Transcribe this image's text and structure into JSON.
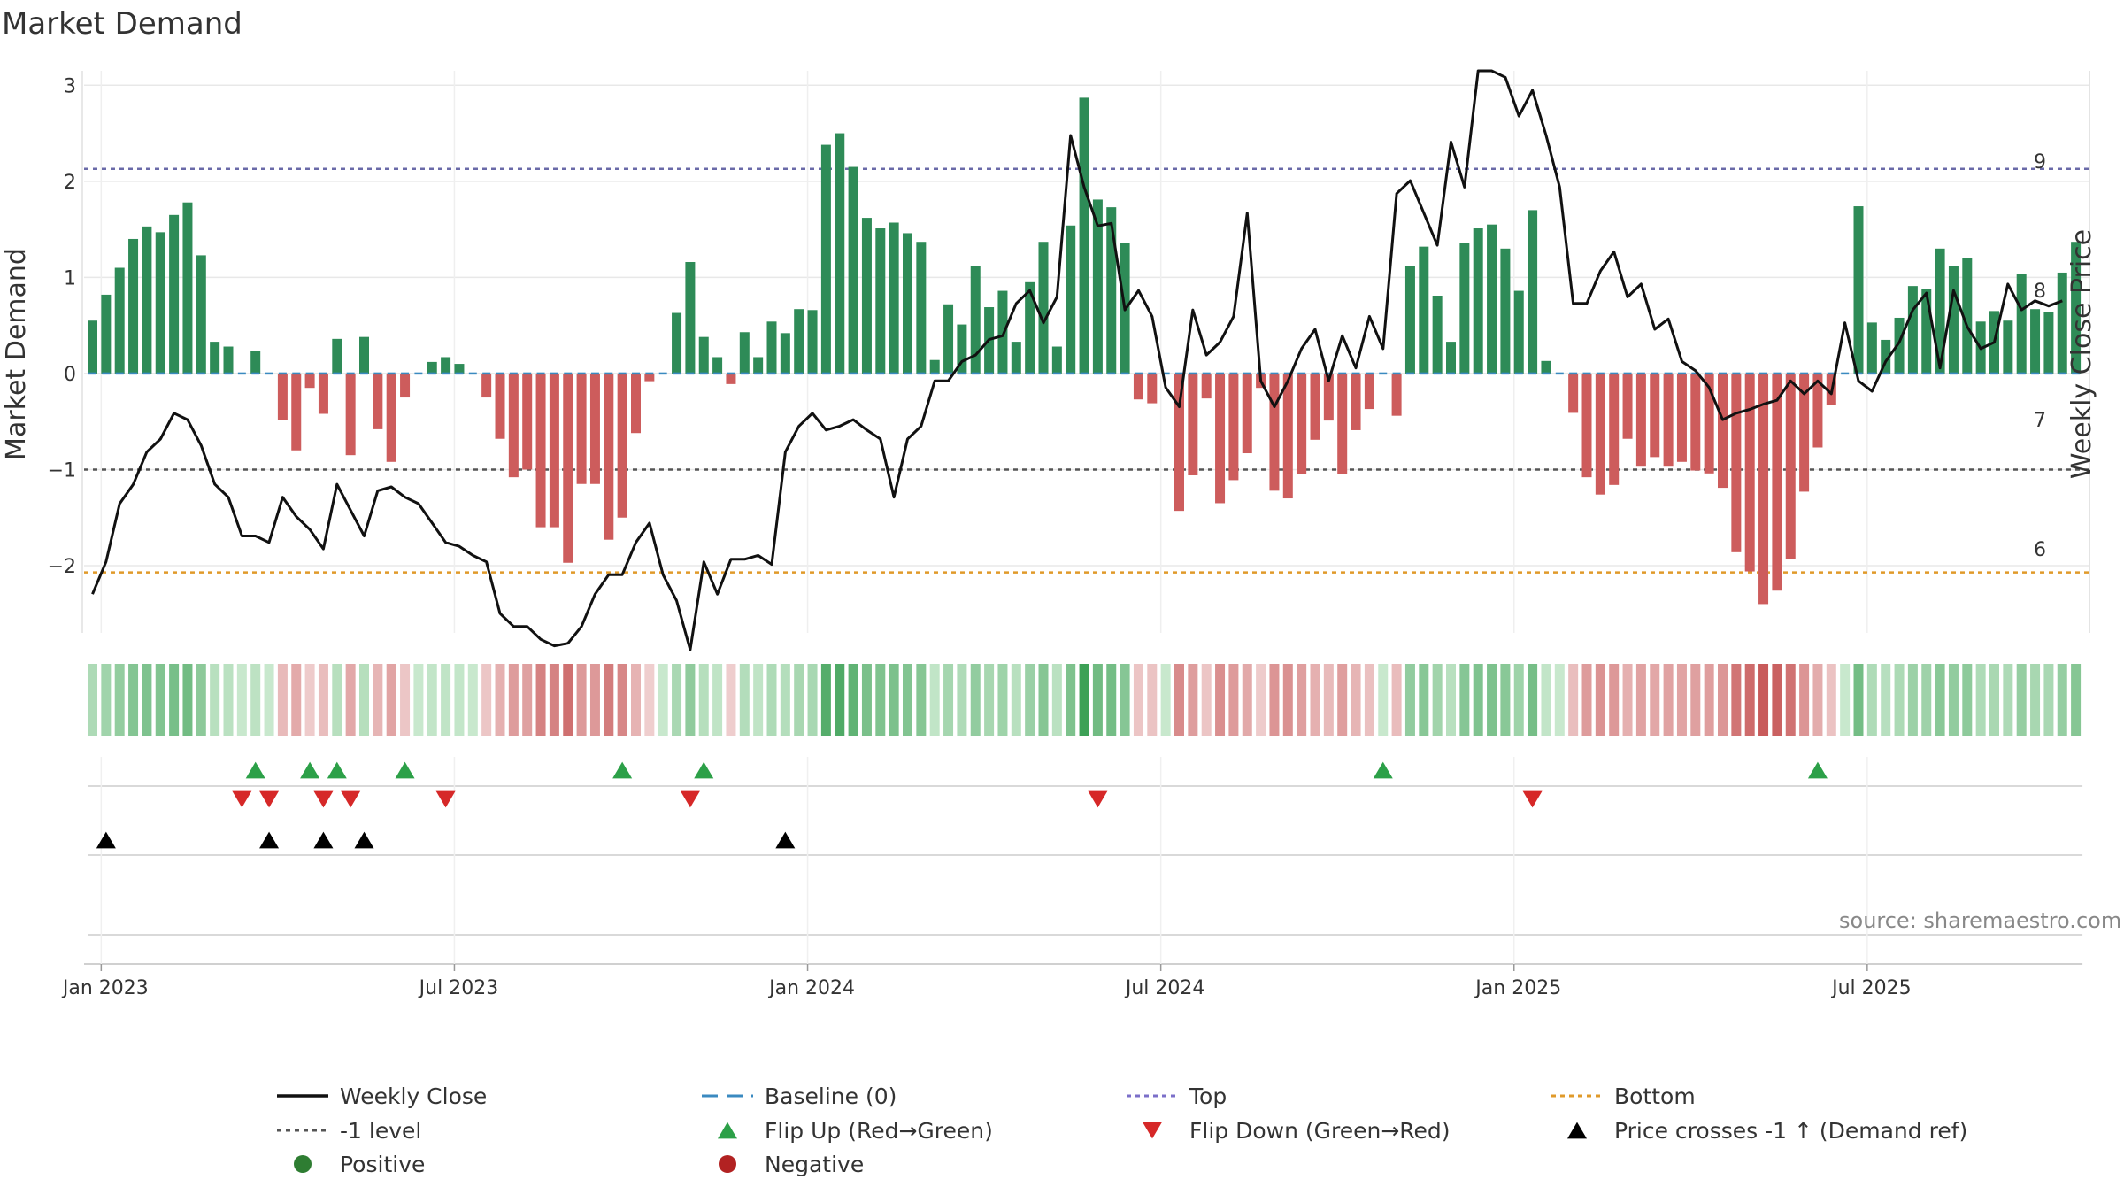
{
  "chart_data": {
    "type": "bar",
    "title": "Market Demand",
    "ylabel_left": "Market Demand",
    "ylabel_right": "Weekly Close Price",
    "source": "source: sharemaestro.com",
    "ylim_left": [
      -2.7,
      3.15
    ],
    "ylim_right": [
      5.35,
      9.7
    ],
    "yticks_left": [
      3,
      2,
      1,
      0,
      -1,
      -2
    ],
    "yticks_left_labels": [
      "3",
      "2",
      "1",
      "0",
      "−1",
      "−2"
    ],
    "yticks_right": [
      9,
      8,
      7,
      6
    ],
    "yticks_right_labels": [
      "9",
      "8",
      "7",
      "6"
    ],
    "levels": {
      "top": 2.13,
      "bottom": -2.07,
      "minus_one": -1.0,
      "baseline": 0
    },
    "xtick_labels": [
      "Jan 2023",
      "Jul 2023",
      "Jan 2024",
      "Jul 2024",
      "Jan 2025",
      "Jul 2025"
    ],
    "xtick_indices": [
      1,
      27,
      53,
      79,
      105,
      131
    ],
    "demand": [
      0.55,
      0.82,
      1.1,
      1.4,
      1.53,
      1.47,
      1.65,
      1.78,
      1.23,
      0.33,
      0.28,
      0,
      0.23,
      0,
      -0.48,
      -0.8,
      -0.15,
      -0.42,
      0.36,
      -0.85,
      0.38,
      -0.58,
      -0.92,
      -0.25,
      0,
      0.12,
      0.17,
      0.1,
      0,
      -0.25,
      -0.68,
      -1.08,
      -1.0,
      -1.6,
      -1.6,
      -1.97,
      -1.15,
      -1.15,
      -1.73,
      -1.5,
      -0.62,
      -0.08,
      0,
      0.63,
      1.16,
      0.38,
      0.17,
      -0.11,
      0.43,
      0.17,
      0.54,
      0.42,
      0.67,
      0.66,
      2.38,
      2.5,
      2.15,
      1.62,
      1.51,
      1.57,
      1.46,
      1.37,
      0.14,
      0.72,
      0.51,
      1.12,
      0.69,
      0.86,
      0.33,
      0.95,
      1.37,
      0.28,
      1.54,
      2.87,
      1.81,
      1.73,
      1.36,
      -0.27,
      -0.31,
      0,
      -1.43,
      -1.06,
      -0.26,
      -1.35,
      -1.11,
      -0.83,
      -0.15,
      -1.22,
      -1.3,
      -1.05,
      -0.69,
      -0.49,
      -1.05,
      -0.59,
      -0.37,
      0,
      -0.44,
      1.12,
      1.32,
      0.81,
      0.33,
      1.36,
      1.51,
      1.55,
      1.3,
      0.86,
      1.7,
      0.13,
      0,
      -0.41,
      -1.08,
      -1.26,
      -1.16,
      -0.68,
      -0.97,
      -0.87,
      -0.97,
      -0.92,
      -1.01,
      -1.04,
      -1.19,
      -1.86,
      -2.06,
      -2.4,
      -2.26,
      -1.93,
      -1.23,
      -0.77,
      -0.33,
      0,
      1.74,
      0.53,
      0.35,
      0.58,
      0.91,
      0.88,
      1.3,
      1.12,
      1.2,
      0.54,
      0.65,
      0.55,
      1.04,
      0.67,
      0.64,
      1.05,
      1.37
    ],
    "weekly_close": [
      5.65,
      5.9,
      6.35,
      6.5,
      6.75,
      6.85,
      7.05,
      7.0,
      6.8,
      6.5,
      6.4,
      6.1,
      6.1,
      6.05,
      6.4,
      6.25,
      6.15,
      6.0,
      6.5,
      6.3,
      6.1,
      6.45,
      6.48,
      6.4,
      6.35,
      6.2,
      6.05,
      6.02,
      5.95,
      5.9,
      5.5,
      5.4,
      5.4,
      5.3,
      5.25,
      5.27,
      5.4,
      5.65,
      5.8,
      5.8,
      6.05,
      6.2,
      5.8,
      5.6,
      5.22,
      5.9,
      5.65,
      5.92,
      5.92,
      5.95,
      5.88,
      6.75,
      6.95,
      7.05,
      6.92,
      6.95,
      7.0,
      6.92,
      6.85,
      6.4,
      6.85,
      6.95,
      7.3,
      7.3,
      7.45,
      7.5,
      7.62,
      7.65,
      7.9,
      8.0,
      7.75,
      7.95,
      9.2,
      8.8,
      8.5,
      8.52,
      7.85,
      8.0,
      7.8,
      7.25,
      7.1,
      7.85,
      7.5,
      7.6,
      7.8,
      8.6,
      7.3,
      7.1,
      7.3,
      7.55,
      7.7,
      7.3,
      7.65,
      7.4,
      7.8,
      7.55,
      8.75,
      8.85,
      8.6,
      8.35,
      9.15,
      8.8,
      9.7,
      9.7,
      9.65,
      9.35,
      9.55,
      9.2,
      8.8,
      7.9,
      7.9,
      8.15,
      8.3,
      7.95,
      8.05,
      7.7,
      7.78,
      7.45,
      7.38,
      7.25,
      7.0,
      7.05,
      7.08,
      7.12,
      7.15,
      7.3,
      7.2,
      7.3,
      7.2,
      7.75,
      7.3,
      7.22,
      7.45,
      7.6,
      7.85,
      7.98,
      7.4,
      8.0,
      7.72,
      7.55,
      7.6,
      8.05,
      7.85,
      7.92,
      7.88,
      7.92
    ],
    "series": [
      {
        "name": "Weekly Close",
        "color": "#111111"
      },
      {
        "name": "Baseline (0)",
        "color": "#3a8ac0"
      },
      {
        "name": "Top",
        "color": "#7b6fc9"
      },
      {
        "name": "Bottom",
        "color": "#e09a2a"
      },
      {
        "name": "-1 level",
        "color": "#555555"
      },
      {
        "name": "Flip Up (Red→Green)",
        "color": "#2ca048"
      },
      {
        "name": "Flip Down (Green→Red)",
        "color": "#d62828"
      },
      {
        "name": "Price crosses -1 ↑ (Demand ref)",
        "color": "#000000"
      },
      {
        "name": "Positive",
        "color": "#2e7d32"
      },
      {
        "name": "Negative",
        "color": "#b22222"
      }
    ],
    "flip_up_indices": [
      12,
      16,
      18,
      23,
      39,
      45,
      95,
      127
    ],
    "flip_down_indices": [
      11,
      13,
      17,
      19,
      26,
      44,
      74,
      106
    ],
    "price_cross_indices": [
      1,
      13,
      17,
      20,
      51
    ],
    "colors": {
      "positive_bar": "#2e8b57",
      "negative_bar": "#cd5c5c"
    }
  }
}
